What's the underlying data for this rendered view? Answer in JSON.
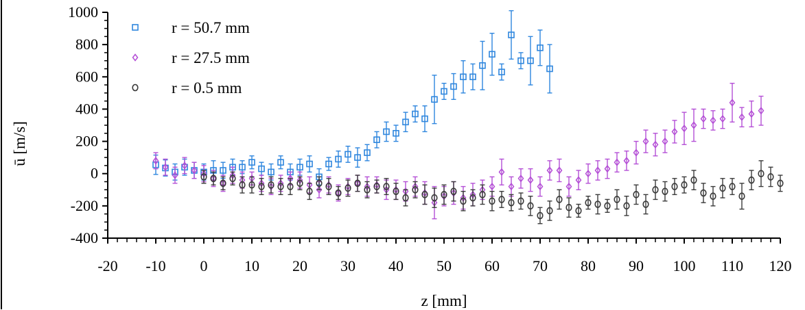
{
  "chart_data": {
    "type": "scatter",
    "title": "",
    "xlabel": "z [mm]",
    "ylabel": "ū [m/s]",
    "xlim": [
      -20,
      120
    ],
    "ylim": [
      -400,
      1000
    ],
    "xticks": [
      -20,
      -10,
      0,
      10,
      20,
      30,
      40,
      50,
      60,
      70,
      80,
      90,
      100,
      110,
      120
    ],
    "yticks": [
      -400,
      -200,
      0,
      200,
      400,
      600,
      800,
      1000
    ],
    "legend_position": "top-left",
    "series": [
      {
        "name": "r = 50.7 mm",
        "marker": "square",
        "color": "#2e86de",
        "points": [
          [
            -10,
            55,
            60
          ],
          [
            -8,
            35,
            50
          ],
          [
            -6,
            10,
            50
          ],
          [
            -4,
            40,
            50
          ],
          [
            -2,
            20,
            50
          ],
          [
            0,
            10,
            50
          ],
          [
            2,
            20,
            60
          ],
          [
            4,
            20,
            50
          ],
          [
            6,
            40,
            50
          ],
          [
            8,
            40,
            40
          ],
          [
            10,
            70,
            40
          ],
          [
            12,
            30,
            40
          ],
          [
            14,
            10,
            50
          ],
          [
            16,
            70,
            40
          ],
          [
            18,
            10,
            50
          ],
          [
            20,
            40,
            50
          ],
          [
            22,
            60,
            50
          ],
          [
            24,
            -20,
            50
          ],
          [
            26,
            60,
            40
          ],
          [
            28,
            90,
            50
          ],
          [
            30,
            120,
            50
          ],
          [
            32,
            100,
            60
          ],
          [
            34,
            130,
            50
          ],
          [
            36,
            210,
            50
          ],
          [
            38,
            260,
            60
          ],
          [
            40,
            250,
            50
          ],
          [
            42,
            320,
            60
          ],
          [
            44,
            370,
            50
          ],
          [
            46,
            340,
            80
          ],
          [
            48,
            460,
            150
          ],
          [
            50,
            510,
            50
          ],
          [
            52,
            540,
            80
          ],
          [
            54,
            600,
            100
          ],
          [
            56,
            600,
            80
          ],
          [
            58,
            670,
            150
          ],
          [
            60,
            740,
            130
          ],
          [
            62,
            630,
            50
          ],
          [
            64,
            860,
            150
          ],
          [
            66,
            700,
            50
          ],
          [
            68,
            700,
            150
          ],
          [
            70,
            780,
            110
          ],
          [
            72,
            650,
            150
          ]
        ]
      },
      {
        "name": "r = 27.5 mm",
        "marker": "diamond",
        "color": "#b44fd6",
        "points": [
          [
            -10,
            80,
            50
          ],
          [
            -8,
            40,
            50
          ],
          [
            -6,
            -10,
            50
          ],
          [
            -4,
            50,
            50
          ],
          [
            -2,
            20,
            50
          ],
          [
            0,
            0,
            50
          ],
          [
            2,
            -30,
            50
          ],
          [
            4,
            -60,
            50
          ],
          [
            6,
            -10,
            50
          ],
          [
            8,
            -40,
            50
          ],
          [
            10,
            -30,
            40
          ],
          [
            12,
            -60,
            50
          ],
          [
            14,
            -80,
            50
          ],
          [
            16,
            -60,
            50
          ],
          [
            18,
            -30,
            40
          ],
          [
            20,
            -40,
            50
          ],
          [
            22,
            -70,
            50
          ],
          [
            24,
            -100,
            50
          ],
          [
            26,
            -70,
            50
          ],
          [
            28,
            -120,
            50
          ],
          [
            30,
            -80,
            50
          ],
          [
            32,
            -60,
            50
          ],
          [
            34,
            -80,
            60
          ],
          [
            36,
            -70,
            50
          ],
          [
            38,
            -100,
            60
          ],
          [
            40,
            -100,
            60
          ],
          [
            42,
            -110,
            60
          ],
          [
            44,
            -80,
            60
          ],
          [
            46,
            -120,
            70
          ],
          [
            48,
            -180,
            100
          ],
          [
            50,
            -140,
            60
          ],
          [
            52,
            -120,
            70
          ],
          [
            54,
            -150,
            70
          ],
          [
            56,
            -130,
            70
          ],
          [
            58,
            -100,
            60
          ],
          [
            60,
            -80,
            60
          ],
          [
            62,
            10,
            80
          ],
          [
            64,
            -80,
            60
          ],
          [
            66,
            -30,
            60
          ],
          [
            68,
            -40,
            70
          ],
          [
            70,
            -80,
            60
          ],
          [
            72,
            20,
            60
          ],
          [
            74,
            20,
            70
          ],
          [
            76,
            -80,
            60
          ],
          [
            78,
            -40,
            60
          ],
          [
            80,
            0,
            60
          ],
          [
            82,
            20,
            60
          ],
          [
            84,
            30,
            60
          ],
          [
            86,
            70,
            60
          ],
          [
            88,
            80,
            60
          ],
          [
            90,
            130,
            70
          ],
          [
            92,
            200,
            70
          ],
          [
            94,
            180,
            70
          ],
          [
            96,
            200,
            70
          ],
          [
            98,
            260,
            70
          ],
          [
            100,
            280,
            100
          ],
          [
            102,
            300,
            100
          ],
          [
            104,
            340,
            60
          ],
          [
            106,
            330,
            60
          ],
          [
            108,
            340,
            60
          ],
          [
            110,
            440,
            120
          ],
          [
            112,
            350,
            60
          ],
          [
            114,
            370,
            80
          ],
          [
            116,
            390,
            90
          ]
        ]
      },
      {
        "name": "r = 0.5 mm",
        "marker": "circle",
        "color": "#3a3a3a",
        "points": [
          [
            0,
            -20,
            40
          ],
          [
            2,
            -30,
            40
          ],
          [
            4,
            -60,
            40
          ],
          [
            6,
            -30,
            40
          ],
          [
            8,
            -70,
            50
          ],
          [
            10,
            -70,
            50
          ],
          [
            12,
            -80,
            50
          ],
          [
            14,
            -70,
            50
          ],
          [
            16,
            -80,
            50
          ],
          [
            18,
            -80,
            50
          ],
          [
            20,
            -60,
            40
          ],
          [
            22,
            -110,
            50
          ],
          [
            24,
            -60,
            40
          ],
          [
            26,
            -80,
            50
          ],
          [
            28,
            -120,
            40
          ],
          [
            30,
            -90,
            50
          ],
          [
            32,
            -60,
            50
          ],
          [
            34,
            -100,
            50
          ],
          [
            36,
            -80,
            40
          ],
          [
            38,
            -80,
            50
          ],
          [
            40,
            -110,
            50
          ],
          [
            42,
            -150,
            50
          ],
          [
            44,
            -100,
            50
          ],
          [
            46,
            -130,
            60
          ],
          [
            48,
            -150,
            60
          ],
          [
            50,
            -130,
            60
          ],
          [
            52,
            -110,
            60
          ],
          [
            54,
            -170,
            60
          ],
          [
            56,
            -150,
            50
          ],
          [
            58,
            -130,
            60
          ],
          [
            60,
            -170,
            60
          ],
          [
            62,
            -160,
            50
          ],
          [
            64,
            -180,
            50
          ],
          [
            66,
            -170,
            50
          ],
          [
            68,
            -200,
            60
          ],
          [
            70,
            -260,
            50
          ],
          [
            72,
            -230,
            60
          ],
          [
            74,
            -160,
            60
          ],
          [
            76,
            -210,
            60
          ],
          [
            78,
            -230,
            40
          ],
          [
            80,
            -180,
            40
          ],
          [
            82,
            -190,
            60
          ],
          [
            84,
            -200,
            40
          ],
          [
            86,
            -160,
            60
          ],
          [
            88,
            -200,
            60
          ],
          [
            90,
            -130,
            60
          ],
          [
            92,
            -190,
            60
          ],
          [
            94,
            -100,
            60
          ],
          [
            96,
            -110,
            60
          ],
          [
            98,
            -80,
            50
          ],
          [
            100,
            -70,
            50
          ],
          [
            102,
            -40,
            60
          ],
          [
            104,
            -120,
            60
          ],
          [
            106,
            -140,
            60
          ],
          [
            108,
            -90,
            60
          ],
          [
            110,
            -80,
            50
          ],
          [
            112,
            -140,
            80
          ],
          [
            114,
            -40,
            60
          ],
          [
            116,
            0,
            80
          ],
          [
            118,
            -20,
            60
          ],
          [
            120,
            -60,
            50
          ]
        ]
      }
    ]
  }
}
